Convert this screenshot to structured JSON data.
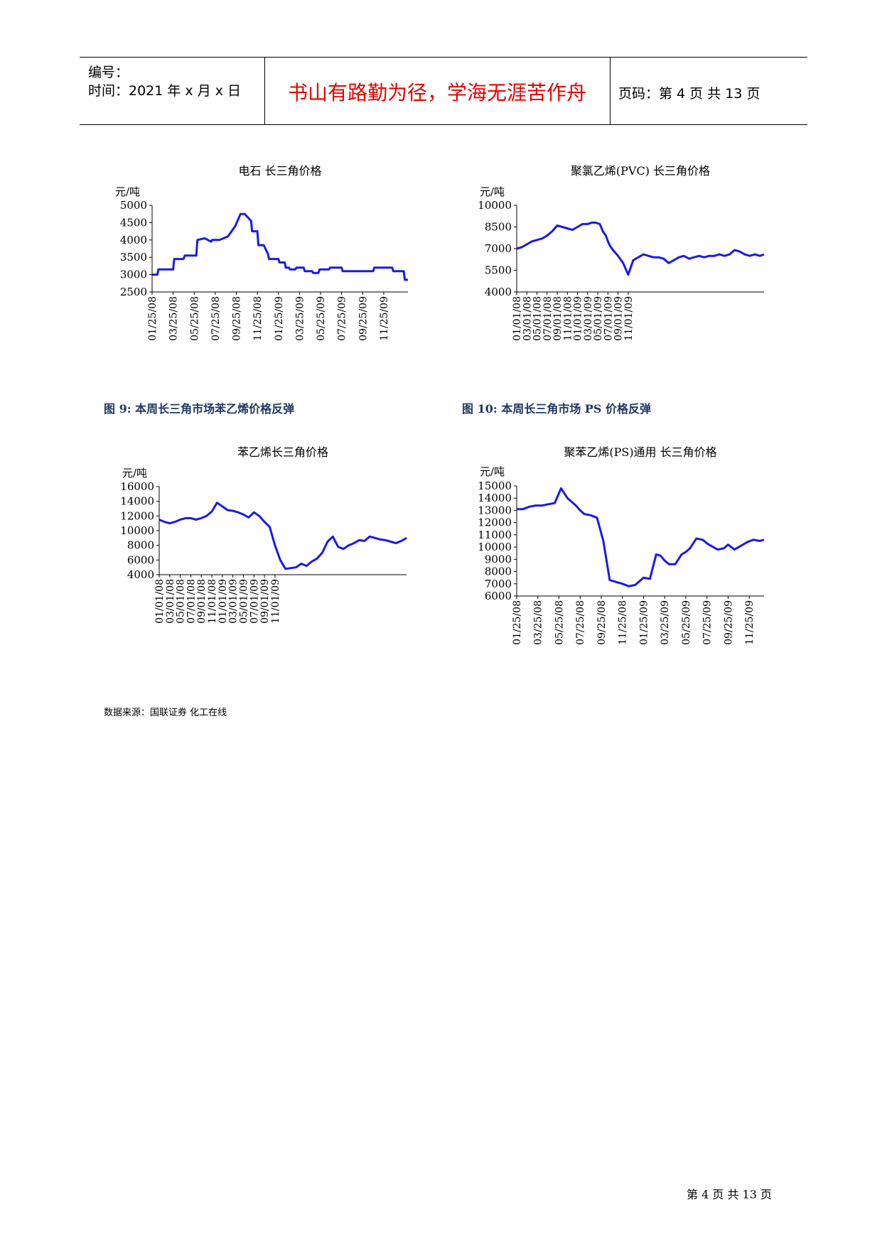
{
  "header": {
    "serial_label": "编号：",
    "date_text": "时间：2021 年 x 月 x 日",
    "motto": "书山有路勤为径，学海无涯苦作舟",
    "page_text": "页码：第 4 页  共 13 页"
  },
  "captions": {
    "fig9": "图 9:    本周长三角市场苯乙烯价格反弹",
    "fig10": "图 10:  本周长三角市场 PS 价格反弹"
  },
  "source": "数据来源：国联证券    化工在线",
  "footer": "第 4 页 共 13 页",
  "line_color": "#1a1ae6",
  "chart_data": [
    {
      "type": "line",
      "title": "电石  长三角价格",
      "ylabel": "元/吨",
      "ylim": [
        2500,
        5000
      ],
      "yticks": [
        2500,
        3000,
        3500,
        4000,
        4500,
        5000
      ],
      "xticks": [
        "01/25/08",
        "03/25/08",
        "05/25/08",
        "07/25/08",
        "09/25/08",
        "11/25/08",
        "01/25/09",
        "03/25/09",
        "05/25/09",
        "07/25/09",
        "09/25/09",
        "11/25/09"
      ],
      "x": [
        0,
        0.25,
        0.3,
        1.0,
        1.05,
        1.5,
        1.55,
        2.1,
        2.15,
        2.5,
        2.8,
        2.85,
        3.2,
        3.6,
        3.95,
        4.2,
        4.4,
        4.7,
        4.75,
        5.0,
        5.05,
        5.3,
        5.5,
        5.55,
        6.0,
        6.05,
        6.3,
        6.35,
        6.5,
        6.55,
        6.8,
        6.85,
        7.2,
        7.25,
        7.6,
        7.65,
        7.9,
        7.95,
        8.4,
        8.45,
        9.0,
        9.05,
        9.5,
        9.55,
        10.5,
        10.55,
        11.0,
        11.05,
        11.4,
        11.45,
        11.95,
        12.0,
        12.15
      ],
      "values": [
        3000,
        3000,
        3150,
        3150,
        3450,
        3450,
        3550,
        3550,
        4000,
        4050,
        3950,
        4000,
        4000,
        4100,
        4400,
        4750,
        4750,
        4550,
        4250,
        4250,
        3850,
        3850,
        3600,
        3450,
        3450,
        3350,
        3350,
        3200,
        3200,
        3150,
        3150,
        3200,
        3200,
        3100,
        3100,
        3050,
        3050,
        3150,
        3150,
        3200,
        3200,
        3100,
        3100,
        3100,
        3100,
        3200,
        3200,
        3200,
        3200,
        3100,
        3100,
        2850,
        2850
      ]
    },
    {
      "type": "line",
      "title": "聚氯乙烯(PVC)  长三角价格",
      "ylabel": "元/吨",
      "ylim": [
        4000,
        10000
      ],
      "yticks": [
        4000,
        5500,
        7000,
        8500,
        10000
      ],
      "xticks": [
        "01/01/08",
        "03/01/08",
        "05/01/08",
        "07/01/08",
        "09/01/08",
        "11/01/08",
        "01/01/09",
        "03/01/09",
        "05/01/09",
        "07/01/09",
        "09/01/09",
        "11/01/09"
      ],
      "x": [
        0,
        0.5,
        1.0,
        1.5,
        2.0,
        2.5,
        3.0,
        3.5,
        4.0,
        4.5,
        5.0,
        5.5,
        6.0,
        6.5,
        7.0,
        7.4,
        7.8,
        8.2,
        8.5,
        8.8,
        9.0,
        9.2,
        9.5,
        10.0,
        10.5,
        11.0,
        11.5,
        12.0,
        12.5,
        13.0,
        13.5,
        14.0,
        14.5,
        15.0,
        15.5,
        16.0,
        16.5,
        17.0,
        17.5,
        18.0,
        18.5,
        19.0,
        19.5,
        20.0,
        20.5,
        21.0,
        21.5,
        22.0,
        22.5,
        23.0,
        23.5,
        24.0,
        24.4
      ],
      "values": [
        7000,
        7100,
        7300,
        7500,
        7600,
        7700,
        7900,
        8200,
        8600,
        8500,
        8400,
        8300,
        8500,
        8700,
        8700,
        8800,
        8800,
        8700,
        8200,
        7900,
        7500,
        7200,
        6900,
        6500,
        6000,
        5200,
        6200,
        6400,
        6600,
        6500,
        6400,
        6400,
        6300,
        6000,
        6200,
        6400,
        6500,
        6300,
        6400,
        6500,
        6400,
        6500,
        6500,
        6600,
        6500,
        6600,
        6900,
        6800,
        6600,
        6500,
        6600,
        6500,
        6600
      ]
    },
    {
      "type": "line",
      "title": "苯乙烯长三角价格",
      "ylabel": "元/吨",
      "ylim": [
        4000,
        16000
      ],
      "yticks": [
        4000,
        6000,
        8000,
        10000,
        12000,
        14000,
        16000
      ],
      "xticks": [
        "01/01/08",
        "03/01/08",
        "05/01/08",
        "07/01/08",
        "09/01/08",
        "11/01/08",
        "01/01/09",
        "03/01/09",
        "05/01/09",
        "07/01/09",
        "09/01/09",
        "11/01/09"
      ],
      "x": [
        0,
        0.5,
        1.0,
        1.5,
        2.0,
        2.5,
        3.0,
        3.5,
        4.0,
        4.5,
        5.0,
        5.5,
        6.0,
        6.5,
        7.0,
        7.5,
        8.0,
        8.5,
        9.0,
        9.5,
        10.0,
        10.5,
        11.0,
        11.5,
        12.0,
        12.5,
        13.0,
        13.5,
        14.0,
        14.5,
        15.0,
        15.5,
        16.0,
        16.5,
        17.0,
        17.5,
        18.0,
        18.5,
        19.0,
        19.5,
        20.0,
        20.5,
        21.0,
        21.5,
        22.0,
        22.5,
        23.0,
        23.5
      ],
      "values": [
        11500,
        11200,
        11000,
        11200,
        11500,
        11700,
        11700,
        11500,
        11700,
        12000,
        12600,
        13800,
        13300,
        12800,
        12700,
        12500,
        12200,
        11800,
        12500,
        12000,
        11200,
        10500,
        8000,
        6000,
        4800,
        4900,
        5000,
        5500,
        5200,
        5800,
        6200,
        7000,
        8500,
        9200,
        7800,
        7500,
        8000,
        8300,
        8700,
        8600,
        9200,
        9000,
        8800,
        8700,
        8500,
        8300,
        8600,
        9000
      ]
    },
    {
      "type": "line",
      "title": "聚苯乙烯(PS)通用  长三角价格",
      "ylabel": "元/吨",
      "ylim": [
        6000,
        15000
      ],
      "yticks": [
        6000,
        7000,
        8000,
        9000,
        10000,
        11000,
        12000,
        13000,
        14000,
        15000
      ],
      "xticks": [
        "01/25/08",
        "03/25/08",
        "05/25/08",
        "07/25/08",
        "09/25/08",
        "11/25/08",
        "01/25/09",
        "03/25/09",
        "05/25/09",
        "07/25/09",
        "09/25/09",
        "11/25/09"
      ],
      "x": [
        0,
        0.3,
        0.6,
        0.9,
        1.2,
        1.5,
        1.8,
        2.1,
        2.4,
        2.6,
        2.8,
        3.0,
        3.2,
        3.5,
        3.8,
        4.1,
        4.4,
        4.6,
        4.8,
        5.0,
        5.3,
        5.6,
        6.0,
        6.3,
        6.6,
        6.8,
        7.0,
        7.2,
        7.5,
        7.8,
        8.0,
        8.2,
        8.5,
        8.8,
        9.0,
        9.2,
        9.5,
        9.8,
        10.0,
        10.3,
        10.6,
        10.9,
        11.2,
        11.5,
        11.7
      ],
      "values": [
        13100,
        13100,
        13300,
        13400,
        13400,
        13500,
        13600,
        14800,
        14000,
        13700,
        13400,
        13000,
        12700,
        12600,
        12400,
        10500,
        7300,
        7200,
        7100,
        7000,
        6800,
        6900,
        7500,
        7400,
        9400,
        9300,
        8900,
        8600,
        8600,
        9400,
        9600,
        9900,
        10700,
        10600,
        10300,
        10100,
        9800,
        9900,
        10200,
        9800,
        10100,
        10400,
        10600,
        10500,
        10600
      ]
    }
  ]
}
